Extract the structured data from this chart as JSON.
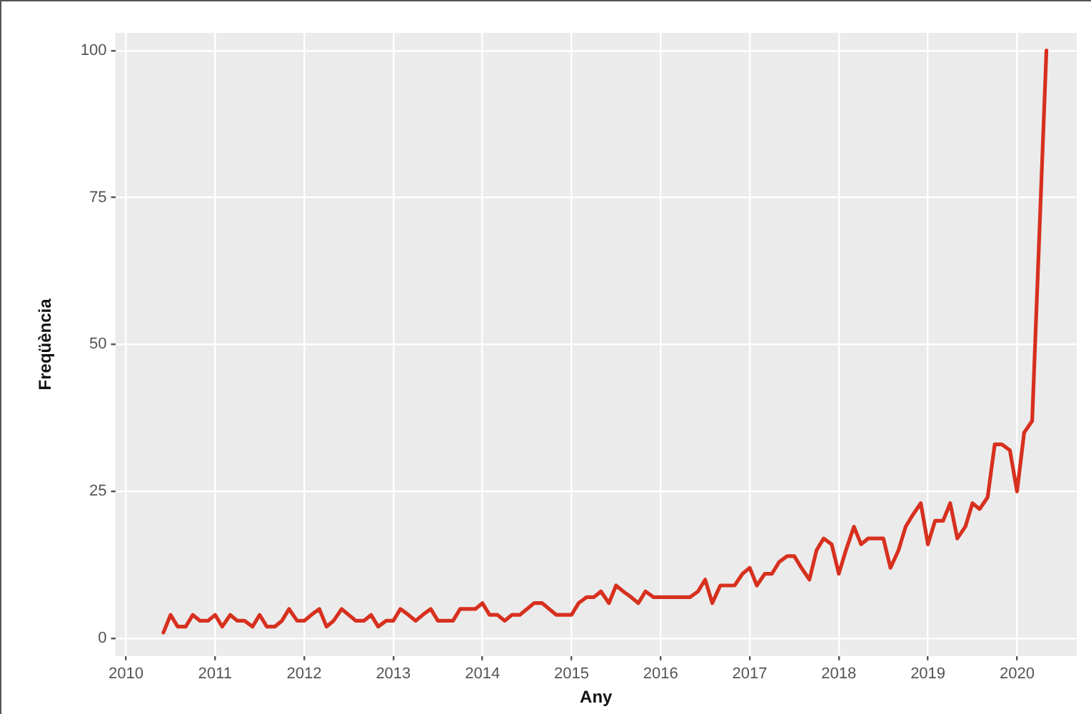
{
  "chart_data": {
    "type": "line",
    "xlabel": "Any",
    "ylabel": "Freqüència",
    "x": [
      2010.42,
      2010.5,
      2010.58,
      2010.67,
      2010.75,
      2010.83,
      2010.92,
      2011.0,
      2011.08,
      2011.17,
      2011.25,
      2011.33,
      2011.42,
      2011.5,
      2011.58,
      2011.67,
      2011.75,
      2011.83,
      2011.92,
      2012.0,
      2012.08,
      2012.17,
      2012.25,
      2012.33,
      2012.42,
      2012.5,
      2012.58,
      2012.67,
      2012.75,
      2012.83,
      2012.92,
      2013.0,
      2013.08,
      2013.17,
      2013.25,
      2013.33,
      2013.42,
      2013.5,
      2013.58,
      2013.67,
      2013.75,
      2013.83,
      2013.92,
      2014.0,
      2014.08,
      2014.17,
      2014.25,
      2014.33,
      2014.42,
      2014.5,
      2014.58,
      2014.67,
      2014.75,
      2014.83,
      2014.92,
      2015.0,
      2015.08,
      2015.17,
      2015.25,
      2015.33,
      2015.42,
      2015.5,
      2015.58,
      2015.67,
      2015.75,
      2015.83,
      2015.92,
      2016.0,
      2016.08,
      2016.17,
      2016.25,
      2016.33,
      2016.42,
      2016.5,
      2016.58,
      2016.67,
      2016.75,
      2016.83,
      2016.92,
      2017.0,
      2017.08,
      2017.17,
      2017.25,
      2017.33,
      2017.42,
      2017.5,
      2017.58,
      2017.67,
      2017.75,
      2017.83,
      2017.92,
      2018.0,
      2018.08,
      2018.17,
      2018.25,
      2018.33,
      2018.42,
      2018.5,
      2018.58,
      2018.67,
      2018.75,
      2018.83,
      2018.92,
      2019.0,
      2019.08,
      2019.17,
      2019.25,
      2019.33,
      2019.42,
      2019.5,
      2019.58,
      2019.67,
      2019.75,
      2019.83,
      2019.92,
      2020.0,
      2020.08,
      2020.17,
      2020.33
    ],
    "series": [
      {
        "color": "#d7301f",
        "values": [
          1,
          4,
          2,
          2,
          4,
          3,
          3,
          4,
          2,
          4,
          3,
          3,
          2,
          4,
          2,
          2,
          3,
          5,
          3,
          3,
          4,
          5,
          2,
          3,
          5,
          4,
          3,
          3,
          4,
          2,
          3,
          3,
          5,
          4,
          3,
          4,
          5,
          3,
          3,
          3,
          5,
          5,
          5,
          6,
          4,
          4,
          3,
          4,
          4,
          5,
          6,
          6,
          5,
          4,
          4,
          4,
          6,
          7,
          7,
          8,
          6,
          9,
          8,
          7,
          6,
          8,
          7,
          7,
          7,
          7,
          7,
          7,
          8,
          10,
          6,
          9,
          9,
          9,
          11,
          12,
          9,
          11,
          11,
          13,
          14,
          14,
          12,
          10,
          15,
          17,
          16,
          11,
          15,
          19,
          16,
          17,
          17,
          17,
          12,
          15,
          19,
          21,
          23,
          16,
          20,
          20,
          23,
          17,
          19,
          23,
          22,
          24,
          33,
          33,
          32,
          25,
          35,
          37,
          100
        ]
      }
    ],
    "xlim": [
      2009.88,
      2020.67
    ],
    "xticks": [
      2010,
      2011,
      2012,
      2013,
      2014,
      2015,
      2016,
      2017,
      2018,
      2019,
      2020
    ],
    "ylim": [
      -3,
      103
    ],
    "yticks": [
      0,
      25,
      50,
      75,
      100
    ],
    "grid": true,
    "legend": false,
    "marker": "none",
    "line_style": "solid"
  }
}
